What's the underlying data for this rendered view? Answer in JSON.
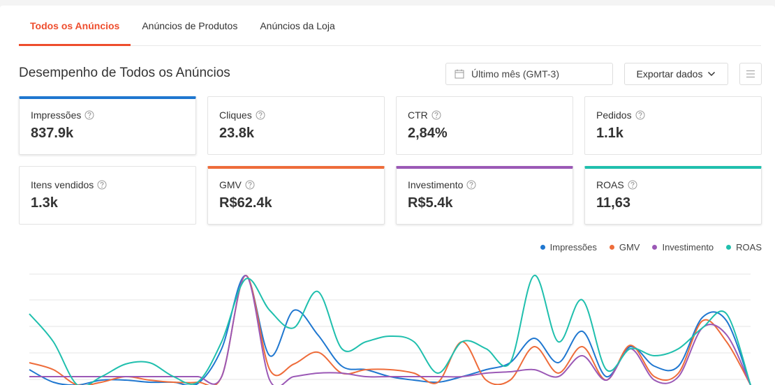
{
  "tabs": [
    "Todos os Anúncios",
    "Anúncios de Produtos",
    "Anúncios da Loja"
  ],
  "active_tab": 0,
  "section_title": "Desempenho de Todos os Anúncios",
  "date_filter": "Último mês (GMT-3)",
  "export_button": "Exportar dados",
  "metrics": [
    {
      "label": "Impressões",
      "value": "837.9k",
      "color": "#1f77d0"
    },
    {
      "label": "Cliques",
      "value": "23.8k"
    },
    {
      "label": "CTR",
      "value": "2,84%"
    },
    {
      "label": "Pedidos",
      "value": "1.1k"
    },
    {
      "label": "Itens vendidos",
      "value": "1.3k"
    },
    {
      "label": "GMV",
      "value": "R$62.4k",
      "color": "#ee6c3a"
    },
    {
      "label": "Investimento",
      "value": "R$5.4k",
      "color": "#9b59b6"
    },
    {
      "label": "ROAS",
      "value": "11,63",
      "color": "#1fbfad"
    }
  ],
  "chart_data": {
    "type": "line",
    "ylim": [
      0,
      160
    ],
    "series": [
      {
        "name": "Impressões",
        "color": "#1f77d0",
        "values": [
          22,
          4,
          0,
          7,
          7,
          4,
          4,
          2,
          52,
          157,
          42,
          107,
          72,
          27,
          22,
          12,
          7,
          4,
          12,
          22,
          32,
          67,
          32,
          77,
          12,
          55,
          27,
          27,
          97,
          92,
          0
        ]
      },
      {
        "name": "GMV",
        "color": "#ee6c3a",
        "values": [
          32,
          22,
          0,
          4,
          12,
          7,
          4,
          4,
          12,
          157,
          22,
          30,
          47,
          17,
          22,
          22,
          17,
          4,
          62,
          7,
          7,
          55,
          17,
          55,
          7,
          57,
          12,
          17,
          92,
          62,
          0
        ]
      },
      {
        "name": "Investimento",
        "color": "#9b59b6",
        "values": [
          12,
          12,
          12,
          12,
          12,
          12,
          12,
          12,
          12,
          157,
          7,
          12,
          17,
          17,
          12,
          12,
          12,
          12,
          12,
          17,
          19,
          22,
          12,
          42,
          7,
          52,
          7,
          12,
          82,
          72,
          0
        ]
      },
      {
        "name": "ROAS",
        "color": "#1fbfad",
        "values": [
          102,
          62,
          0,
          12,
          30,
          32,
          12,
          4,
          62,
          152,
          107,
          82,
          134,
          52,
          62,
          70,
          62,
          17,
          62,
          52,
          32,
          157,
          62,
          122,
          22,
          52,
          42,
          52,
          82,
          102,
          0
        ]
      }
    ]
  }
}
